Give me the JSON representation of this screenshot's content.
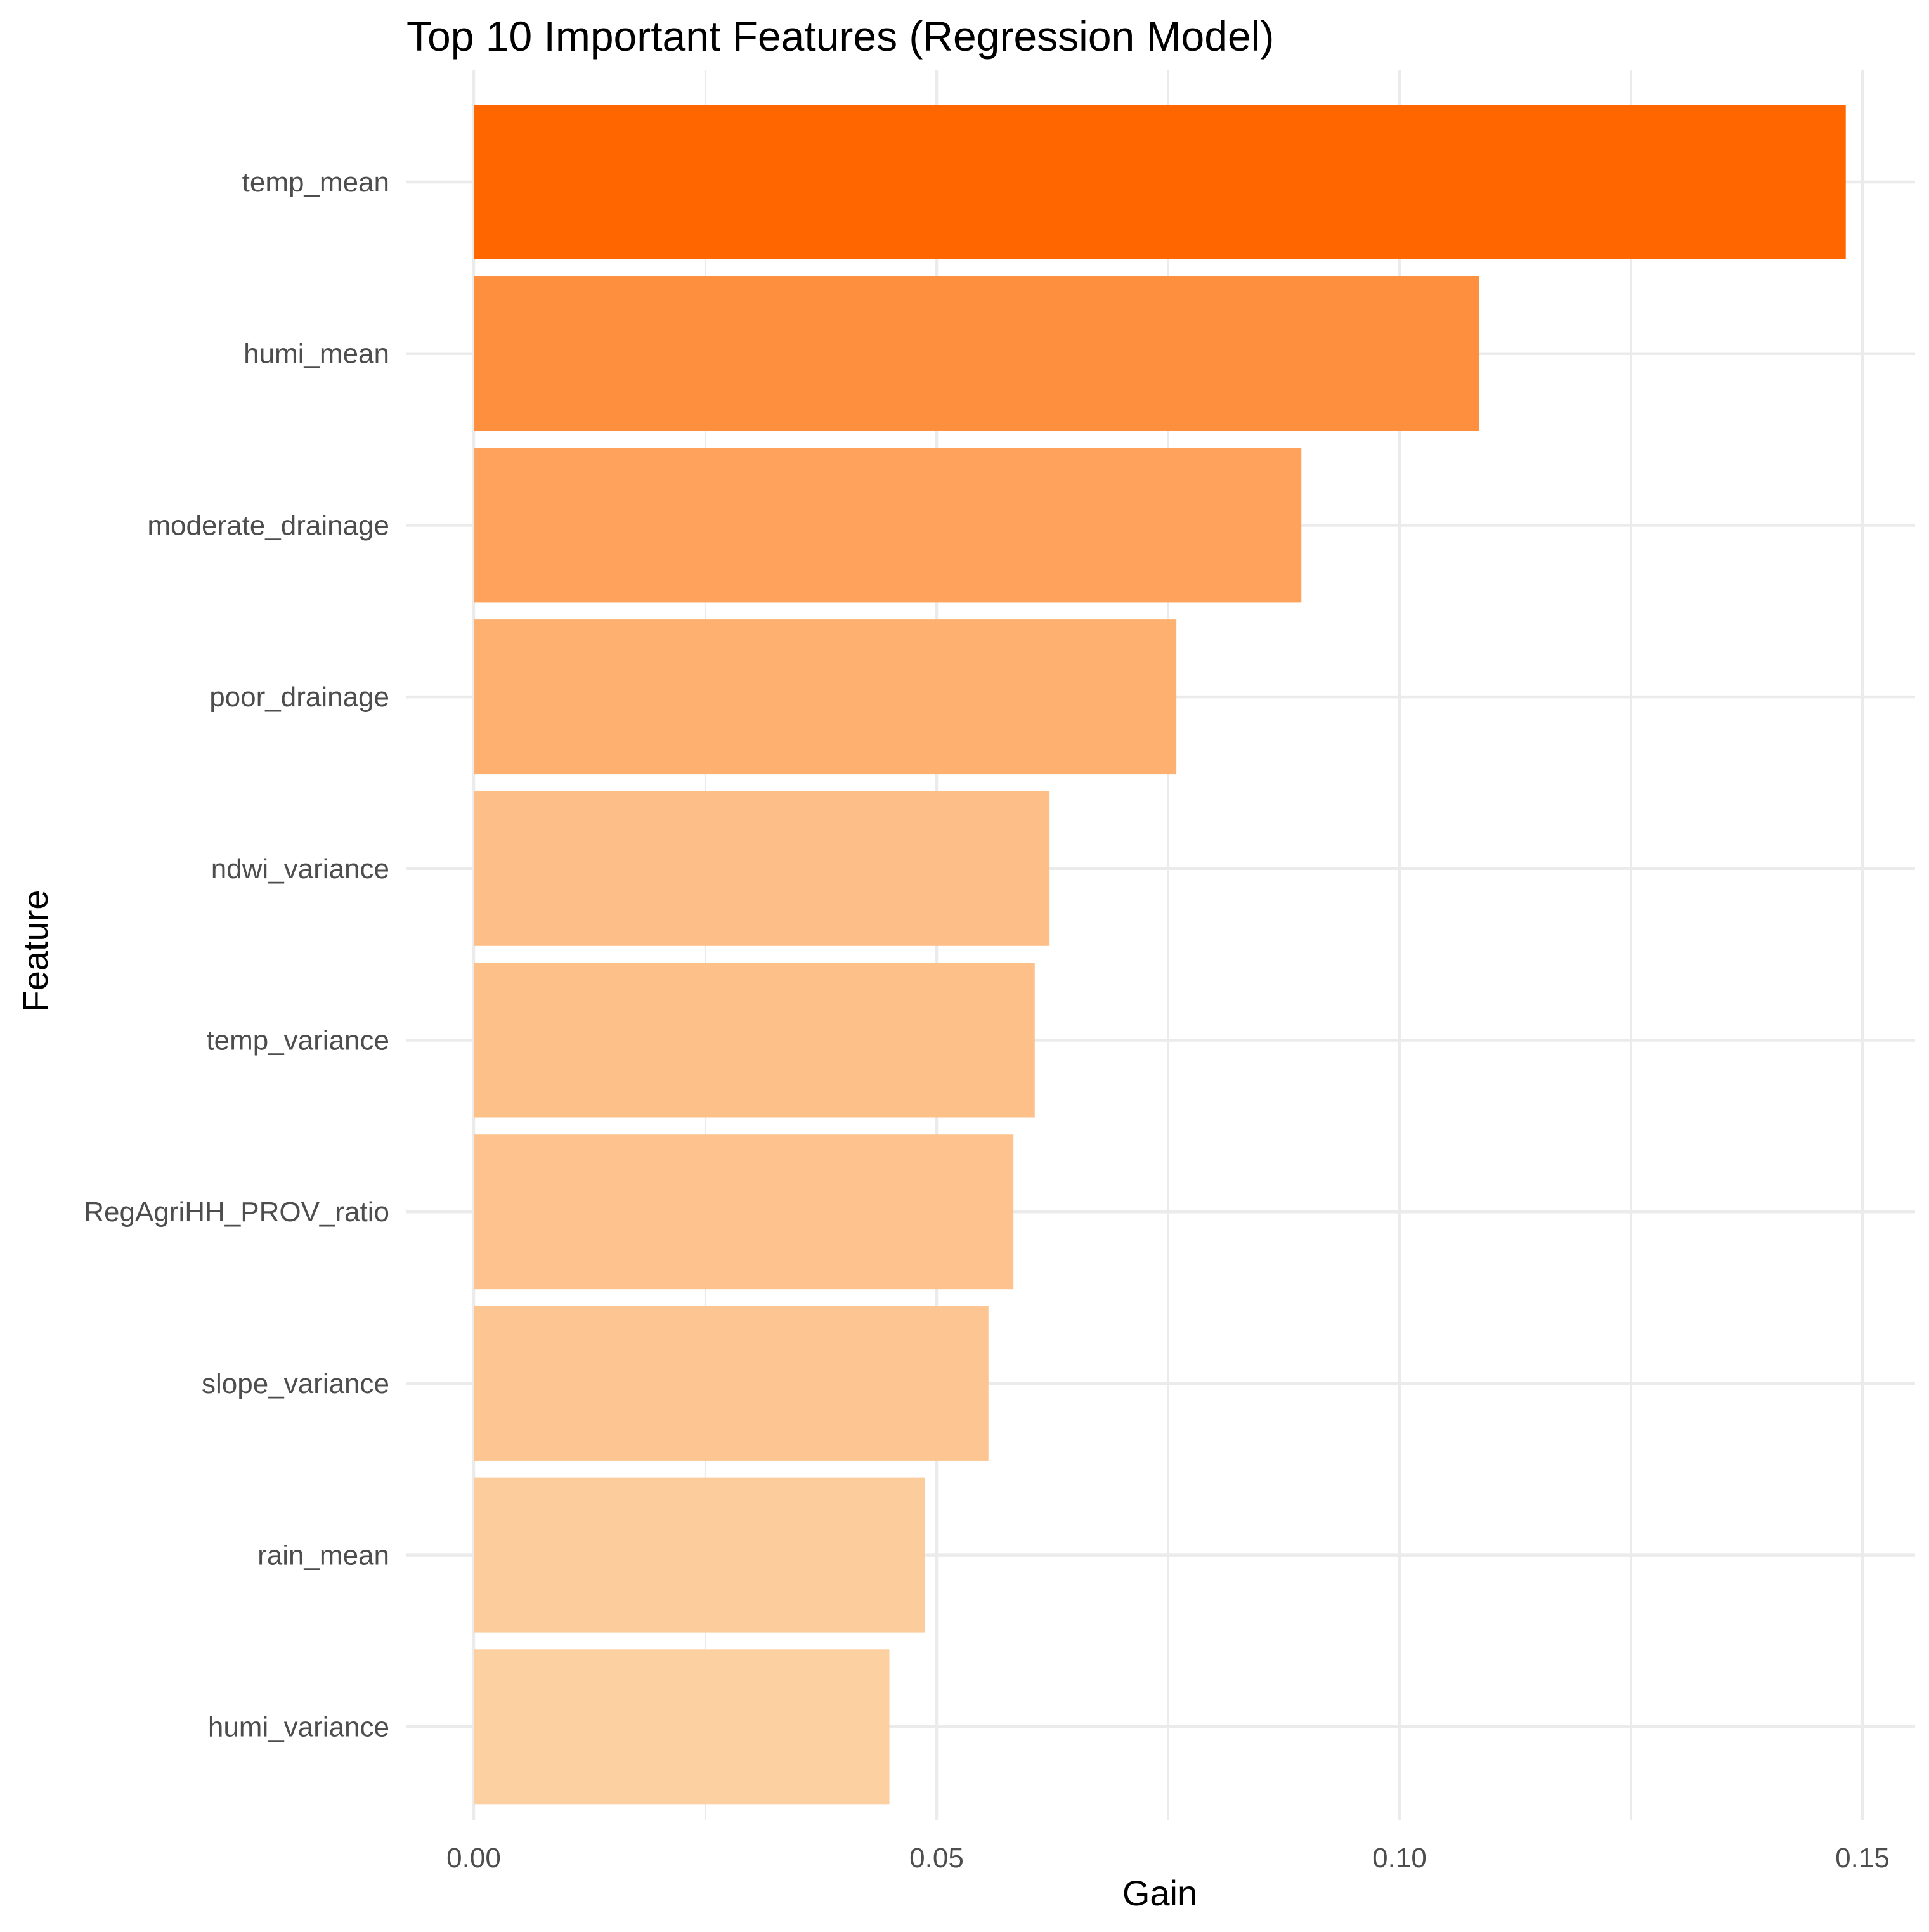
{
  "chart_data": {
    "type": "bar",
    "orientation": "horizontal",
    "title": "Top 10 Important Features (Regression Model)",
    "xlabel": "Gain",
    "ylabel": "Feature",
    "categories": [
      "temp_mean",
      "humi_mean",
      "moderate_drainage",
      "poor_drainage",
      "ndwi_variance",
      "temp_variance",
      "RegAgriHH_PROV_ratio",
      "slope_variance",
      "rain_mean",
      "humi_variance"
    ],
    "values": [
      0.1482,
      0.1086,
      0.0894,
      0.0759,
      0.0622,
      0.0606,
      0.0583,
      0.0556,
      0.0487,
      0.0449
    ],
    "xlim": [
      0.0,
      0.155
    ],
    "x_ticks": [
      0.0,
      0.05,
      0.1,
      0.15
    ],
    "x_tick_labels": [
      "0.00",
      "0.05",
      "0.10",
      "0.15"
    ],
    "grid": true,
    "legend": "none",
    "color_scale": {
      "low": "#fdd0a2",
      "high": "#ff6600"
    }
  }
}
